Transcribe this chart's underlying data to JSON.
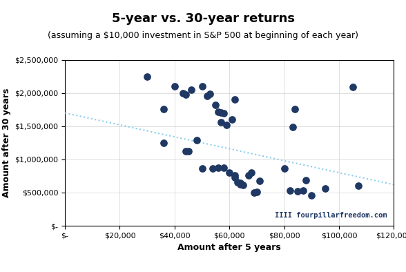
{
  "title": "5-year vs. 30-year returns",
  "subtitle": "(assuming a $10,000 investment in S&P 500 at beginning of each year)",
  "xlabel": "Amount after 5 years",
  "ylabel": "Amount after 30 years",
  "watermark": "IIII fourpillarfreedom.com",
  "scatter_color": "#1F3864",
  "trendline_color": "#87CEEB",
  "xlim": [
    0,
    120000
  ],
  "ylim": [
    0,
    2500000
  ],
  "xticks": [
    0,
    20000,
    40000,
    60000,
    80000,
    100000,
    120000
  ],
  "yticks": [
    0,
    500000,
    1000000,
    1500000,
    2000000,
    2500000
  ],
  "points": [
    [
      30000,
      2250000
    ],
    [
      40000,
      2100000
    ],
    [
      43000,
      2000000
    ],
    [
      44000,
      1980000
    ],
    [
      46000,
      2050000
    ],
    [
      50000,
      2100000
    ],
    [
      52000,
      1960000
    ],
    [
      53000,
      1990000
    ],
    [
      55000,
      1820000
    ],
    [
      56000,
      1720000
    ],
    [
      57000,
      1710000
    ],
    [
      58000,
      1700000
    ],
    [
      57000,
      1560000
    ],
    [
      59000,
      1520000
    ],
    [
      61000,
      1600000
    ],
    [
      62000,
      1900000
    ],
    [
      36000,
      1760000
    ],
    [
      36000,
      1250000
    ],
    [
      44000,
      1120000
    ],
    [
      45000,
      1120000
    ],
    [
      48000,
      1290000
    ],
    [
      50000,
      860000
    ],
    [
      54000,
      860000
    ],
    [
      56000,
      870000
    ],
    [
      58000,
      870000
    ],
    [
      60000,
      800000
    ],
    [
      62000,
      760000
    ],
    [
      62000,
      730000
    ],
    [
      63000,
      660000
    ],
    [
      64000,
      650000
    ],
    [
      64000,
      620000
    ],
    [
      65000,
      610000
    ],
    [
      67000,
      760000
    ],
    [
      68000,
      800000
    ],
    [
      69000,
      500000
    ],
    [
      70000,
      510000
    ],
    [
      71000,
      680000
    ],
    [
      80000,
      860000
    ],
    [
      82000,
      530000
    ],
    [
      85000,
      520000
    ],
    [
      87000,
      530000
    ],
    [
      88000,
      690000
    ],
    [
      90000,
      460000
    ],
    [
      95000,
      560000
    ],
    [
      105000,
      2090000
    ],
    [
      107000,
      600000
    ],
    [
      84000,
      1760000
    ],
    [
      83000,
      1490000
    ]
  ],
  "trend_x": [
    0,
    120000
  ],
  "trend_y": [
    1700000,
    620000
  ],
  "title_fontsize": 13,
  "subtitle_fontsize": 9,
  "label_fontsize": 9,
  "tick_fontsize": 8,
  "marker_size": 45,
  "figsize": [
    5.88,
    3.94
  ],
  "dpi": 100
}
